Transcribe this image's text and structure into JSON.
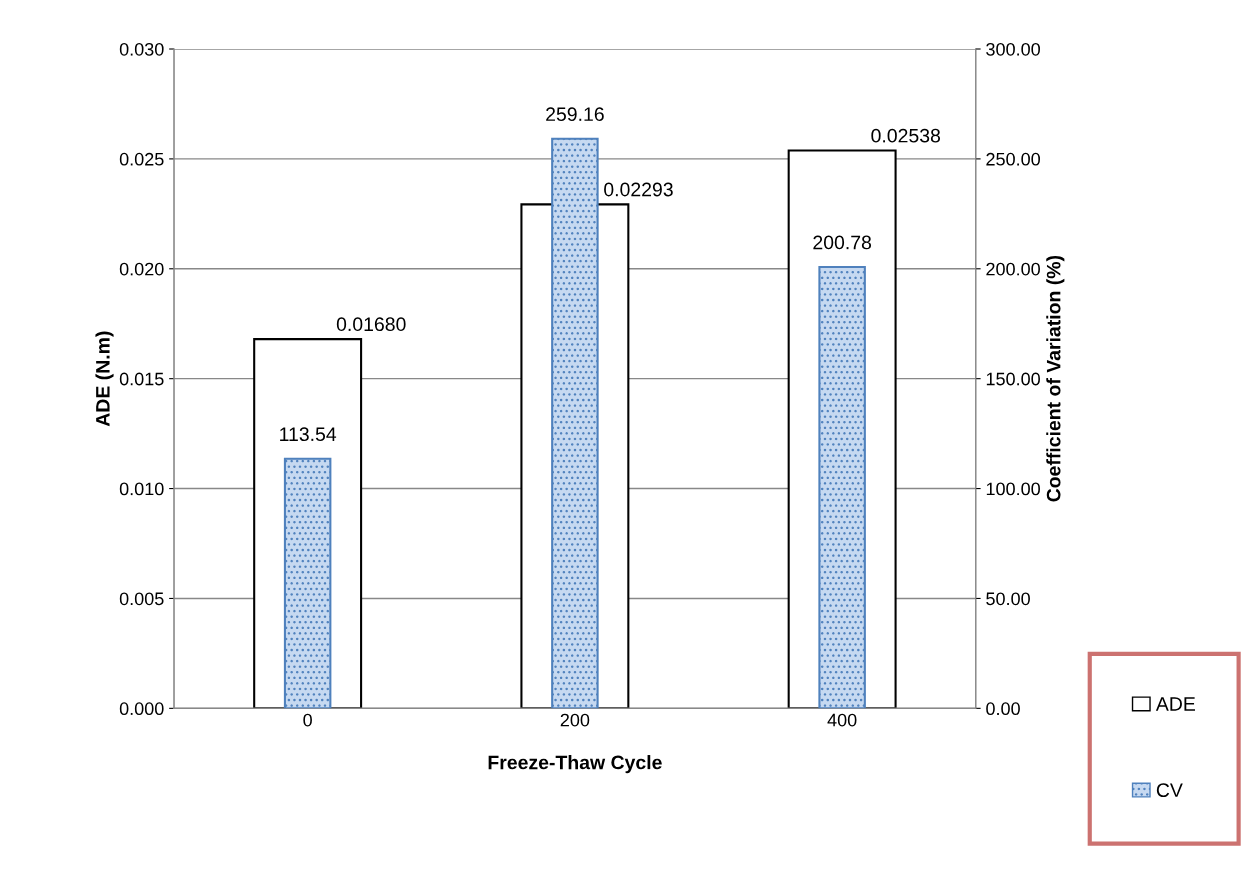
{
  "chart_data": {
    "type": "bar",
    "xlabel": "Freeze-Thaw Cycle",
    "ylabel": "ADE (N.m)",
    "y2label": "Coefficient of Variation (%)",
    "categories": [
      "0",
      "200",
      "400"
    ],
    "series": [
      {
        "name": "ADE",
        "color": "#000000",
        "values": [
          0.0168,
          0.02293,
          0.02538
        ],
        "value_labels": [
          "0.01680",
          "0.02293",
          "0.02538"
        ]
      },
      {
        "name": "CV",
        "color": "#4f81bd",
        "axis": "y2",
        "values": [
          113.54,
          259.16,
          200.78
        ],
        "value_labels": [
          "113.54",
          "259.16",
          "200.78"
        ]
      }
    ],
    "ylim": [
      0,
      0.03
    ],
    "yticks": [
      {
        "value": 0,
        "label": "0.000"
      },
      {
        "value": 0.005,
        "label": "0.005"
      },
      {
        "value": 0.01,
        "label": "0.010"
      },
      {
        "value": 0.015,
        "label": "0.015"
      },
      {
        "value": 0.02,
        "label": "0.020"
      },
      {
        "value": 0.025,
        "label": "0.025"
      },
      {
        "value": 0.03,
        "label": "0.030"
      }
    ],
    "y2lim": [
      0,
      300
    ],
    "y2ticks": [
      {
        "value": 0,
        "label": "0.00"
      },
      {
        "value": 50,
        "label": "50.00"
      },
      {
        "value": 100,
        "label": "100.00"
      },
      {
        "value": 150,
        "label": "150.00"
      },
      {
        "value": 200,
        "label": "200.00"
      },
      {
        "value": 250,
        "label": "250.00"
      },
      {
        "value": 300,
        "label": "300.00"
      }
    ],
    "grid": "y",
    "legend": "bottom right"
  }
}
